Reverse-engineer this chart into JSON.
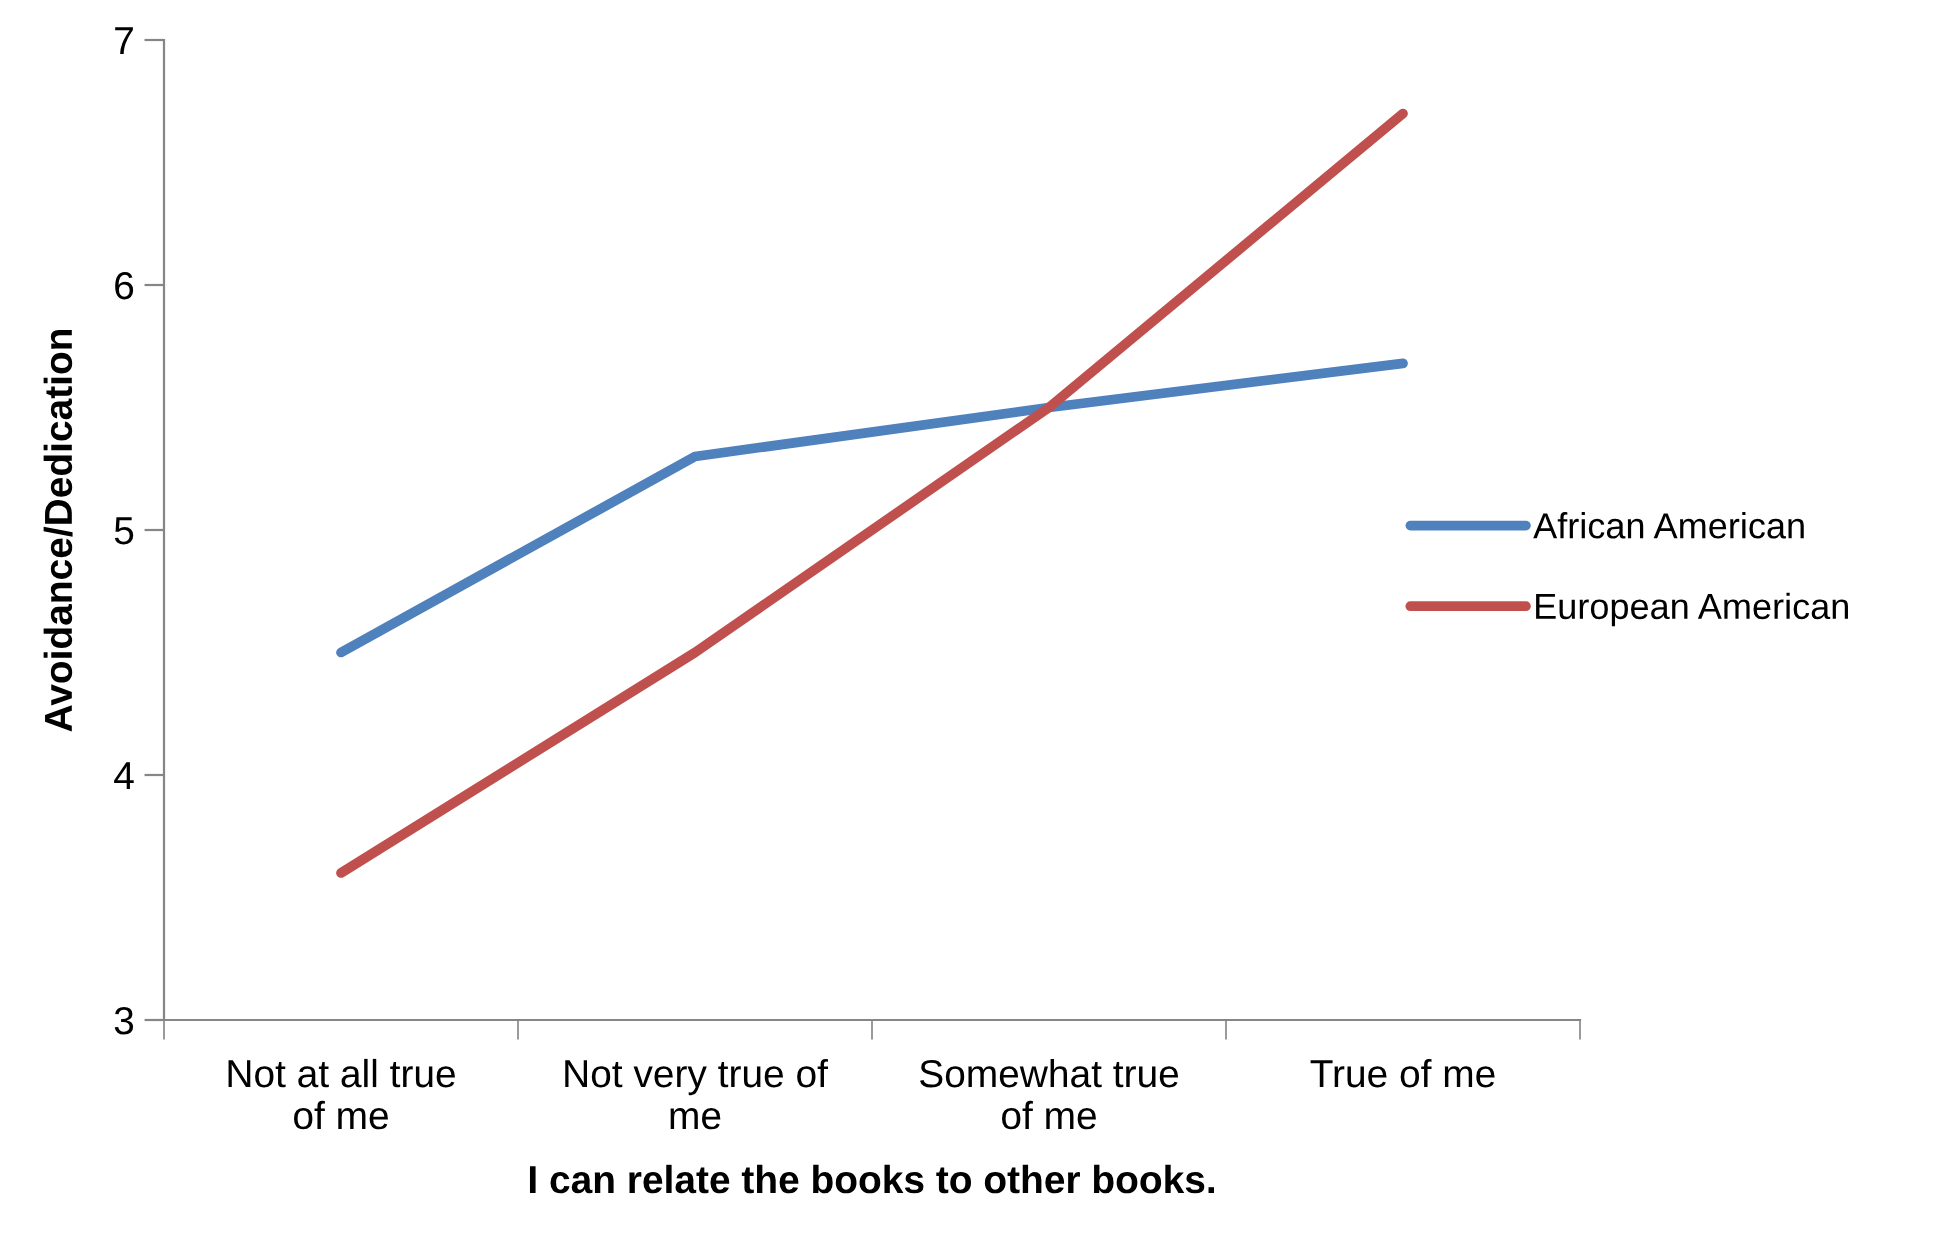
{
  "chart_data": {
    "type": "line",
    "xlabel": "I can relate the books to other books.",
    "ylabel": "Avoidance/Dedication",
    "categories": [
      "Not at all true\nof me",
      "Not very true of\nme",
      "Somewhat true\nof me",
      "True of me"
    ],
    "series": [
      {
        "name": "African American",
        "color": "#4f81bd",
        "values": [
          4.5,
          5.3,
          5.5,
          5.68
        ]
      },
      {
        "name": "European American",
        "color": "#c0504d",
        "values": [
          3.6,
          4.5,
          5.5,
          6.7
        ]
      }
    ],
    "ylim": [
      3,
      7
    ],
    "yticks": [
      3,
      4,
      5,
      6,
      7
    ],
    "grid": false,
    "legend": "right",
    "marker": "none",
    "line_style": "solid"
  }
}
